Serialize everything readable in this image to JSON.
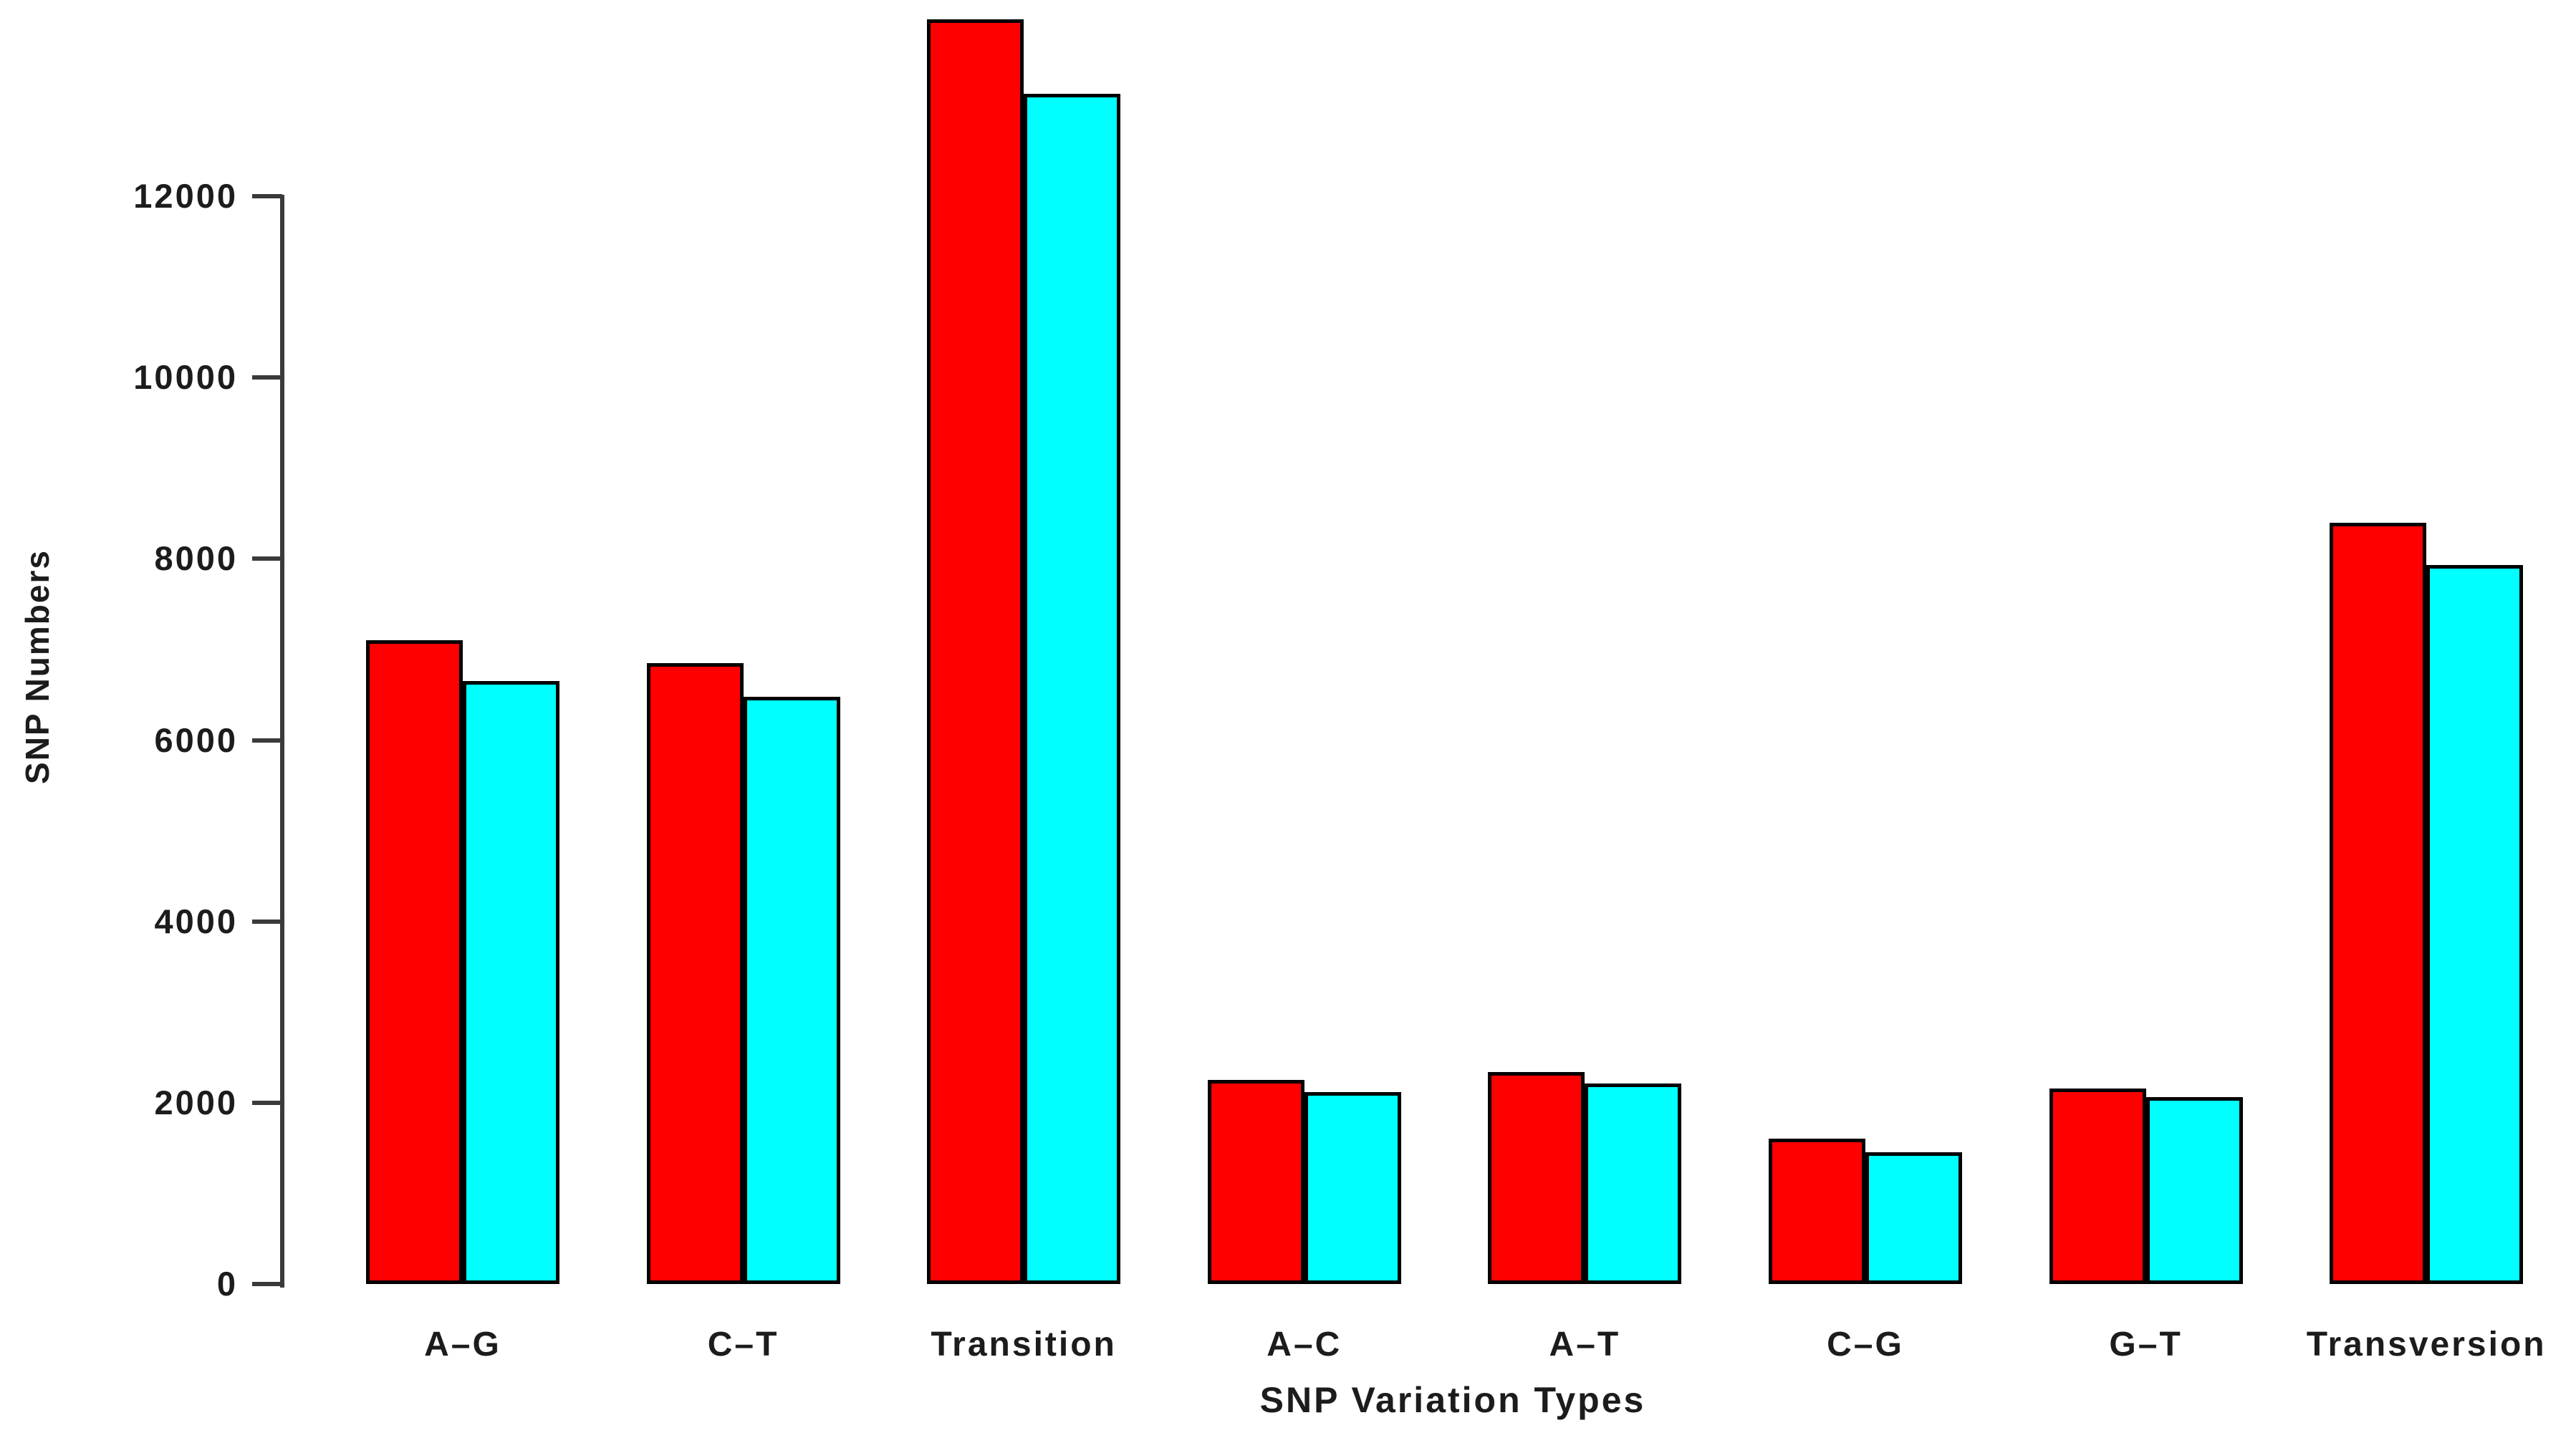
{
  "chart_data": {
    "type": "bar",
    "title": "",
    "xlabel": "SNP Variation Types",
    "ylabel": "SNP Numbers",
    "categories": [
      "A–G",
      "C–T",
      "Transition",
      "A–C",
      "A–T",
      "C–G",
      "G–T",
      "Transversion"
    ],
    "series": [
      {
        "name": "red-bars",
        "color": "#ff0000",
        "values": [
          7100,
          6850,
          13950,
          2250,
          2340,
          1600,
          2160,
          8400
        ]
      },
      {
        "name": "cyan-bars",
        "color": "#00ffff",
        "values": [
          6650,
          6480,
          13130,
          2120,
          2210,
          1450,
          2060,
          7930
        ]
      }
    ],
    "ylim": [
      0,
      12000
    ],
    "ytick_interval": 2000,
    "ytick_labels": [
      "0",
      "2000",
      "4000",
      "6000",
      "8000",
      "10000",
      "12000"
    ],
    "grid": false,
    "legend": "none",
    "bar_outline_color": "#000000",
    "axis_color": "#3a3a3a",
    "text_color": "#1c1c1c",
    "background_color": "#ffffff"
  }
}
